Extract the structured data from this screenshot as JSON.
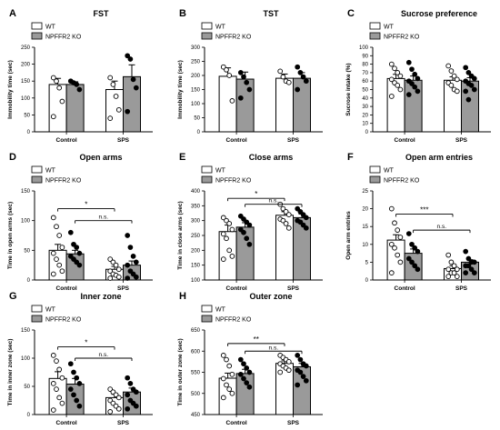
{
  "colors": {
    "wt": "#ffffff",
    "ko": "#9a9a9a",
    "stroke": "#000000"
  },
  "legend": {
    "wt": "WT",
    "ko": "NPFFR2 KO"
  },
  "chart_data": [
    {
      "panel": "A",
      "type": "bar",
      "title": "FST",
      "ylabel": "Immobility time (sec)",
      "ylim": [
        0,
        250
      ],
      "yticks": [
        0,
        50,
        100,
        150,
        200,
        250
      ],
      "categories": [
        "Control",
        "SPS"
      ],
      "series": [
        {
          "name": "WT",
          "values": [
            140,
            125
          ],
          "sem": [
            18,
            25
          ],
          "points": [
            [
              160,
              150,
              130,
              90,
              45
            ],
            [
              160,
              140,
              105,
              65,
              40
            ]
          ]
        },
        {
          "name": "NPFFR2 KO",
          "values": [
            140,
            163
          ],
          "sem": [
            8,
            35
          ],
          "points": [
            [
              150,
              145,
              140,
              125
            ],
            [
              225,
              215,
              155,
              130,
              60
            ]
          ]
        }
      ],
      "annotations": []
    },
    {
      "panel": "B",
      "type": "bar",
      "title": "TST",
      "ylabel": "Immobility time (sec)",
      "ylim": [
        0,
        300
      ],
      "yticks": [
        0,
        50,
        100,
        150,
        200,
        250,
        300
      ],
      "categories": [
        "Control",
        "SPS"
      ],
      "series": [
        {
          "name": "WT",
          "values": [
            197,
            190
          ],
          "sem": [
            30,
            15
          ],
          "points": [
            [
              230,
              220,
              200,
              110
            ],
            [
              215,
              195,
              180,
              175
            ]
          ]
        },
        {
          "name": "NPFFR2 KO",
          "values": [
            187,
            190
          ],
          "sem": [
            25,
            20
          ],
          "points": [
            [
              210,
              195,
              175,
              150,
              120
            ],
            [
              230,
              210,
              195,
              180,
              150
            ]
          ]
        }
      ],
      "annotations": []
    },
    {
      "panel": "C",
      "type": "bar",
      "title": "Sucrose preference",
      "ylabel": "Sucrose intake (%)",
      "ylim": [
        0,
        100
      ],
      "yticks": [
        0,
        10,
        20,
        30,
        40,
        50,
        60,
        70,
        80,
        90,
        100
      ],
      "categories": [
        "Control",
        "SPS"
      ],
      "series": [
        {
          "name": "WT",
          "values": [
            63,
            61
          ],
          "sem": [
            5,
            4
          ],
          "points": [
            [
              80,
              75,
              70,
              66,
              62,
              58,
              55,
              50,
              42
            ],
            [
              78,
              72,
              66,
              62,
              58,
              55,
              50,
              48
            ]
          ]
        },
        {
          "name": "NPFFR2 KO",
          "values": [
            61,
            60
          ],
          "sem": [
            5,
            4
          ],
          "points": [
            [
              82,
              74,
              68,
              63,
              60,
              57,
              53,
              48,
              44
            ],
            [
              76,
              70,
              66,
              63,
              60,
              57,
              55,
              50,
              48,
              38
            ]
          ]
        }
      ],
      "annotations": []
    },
    {
      "panel": "D",
      "type": "bar",
      "title": "Open arms",
      "ylabel": "Time in open arms (sec)",
      "ylim": [
        0,
        150
      ],
      "yticks": [
        0,
        50,
        100,
        150
      ],
      "categories": [
        "Control",
        "SPS"
      ],
      "series": [
        {
          "name": "WT",
          "values": [
            50,
            18
          ],
          "sem": [
            10,
            5
          ],
          "points": [
            [
              105,
              90,
              75,
              55,
              45,
              35,
              25,
              15,
              10
            ],
            [
              35,
              30,
              25,
              18,
              15,
              10,
              8,
              5,
              3
            ]
          ]
        },
        {
          "name": "NPFFR2 KO",
          "values": [
            44,
            25
          ],
          "sem": [
            6,
            7
          ],
          "points": [
            [
              80,
              60,
              55,
              45,
              40,
              35,
              30,
              25
            ],
            [
              75,
              55,
              40,
              30,
              25,
              15,
              10,
              5,
              3
            ]
          ]
        }
      ],
      "annotations": [
        {
          "text": "*",
          "from": [
            0,
            0
          ],
          "to": [
            1,
            0
          ],
          "y": 120
        },
        {
          "text": "n.s.",
          "from": [
            0,
            1
          ],
          "to": [
            1,
            1
          ],
          "y": 100
        }
      ]
    },
    {
      "panel": "E",
      "type": "bar",
      "title": "Close arms",
      "ylabel": "Time in close arms (sec)",
      "ylim": [
        100,
        400
      ],
      "yticks": [
        100,
        150,
        200,
        250,
        300,
        350,
        400
      ],
      "categories": [
        "Control",
        "SPS"
      ],
      "series": [
        {
          "name": "WT",
          "values": [
            263,
            318
          ],
          "sem": [
            22,
            12
          ],
          "points": [
            [
              310,
              300,
              290,
              270,
              255,
              240,
              200,
              180,
              170
            ],
            [
              355,
              340,
              330,
              320,
              305,
              300,
              290,
              275
            ]
          ]
        },
        {
          "name": "NPFFR2 KO",
          "values": [
            278,
            310
          ],
          "sem": [
            15,
            12
          ],
          "points": [
            [
              315,
              305,
              295,
              285,
              270,
              260,
              240,
              220
            ],
            [
              340,
              330,
              320,
              310,
              300,
              295,
              285,
              275
            ]
          ]
        }
      ],
      "annotations": [
        {
          "text": "*",
          "from": [
            0,
            0
          ],
          "to": [
            1,
            0
          ],
          "y": 375
        },
        {
          "text": "n.s.",
          "from": [
            0,
            1
          ],
          "to": [
            1,
            1
          ],
          "y": 355
        }
      ]
    },
    {
      "panel": "F",
      "type": "bar",
      "title": "Open arm entries",
      "ylabel": "Open arm entries",
      "ylim": [
        0,
        25
      ],
      "yticks": [
        0,
        5,
        10,
        15,
        20,
        25
      ],
      "categories": [
        "Control",
        "SPS"
      ],
      "series": [
        {
          "name": "WT",
          "values": [
            11.2,
            3.2
          ],
          "sem": [
            1.5,
            0.8
          ],
          "points": [
            [
              20,
              16,
              14,
              12,
              10,
              9,
              7,
              5,
              2
            ],
            [
              7,
              5,
              4,
              3,
              3,
              2,
              2,
              1,
              1
            ]
          ]
        },
        {
          "name": "NPFFR2 KO",
          "values": [
            7.5,
            5.0
          ],
          "sem": [
            1.2,
            0.7
          ],
          "points": [
            [
              13,
              10,
              9,
              8,
              6,
              5,
              4,
              3
            ],
            [
              8,
              6,
              5,
              5,
              4,
              4,
              3,
              2,
              2
            ]
          ]
        }
      ],
      "annotations": [
        {
          "text": "***",
          "from": [
            0,
            0
          ],
          "to": [
            1,
            0
          ],
          "y": 18.5
        },
        {
          "text": "n.s.",
          "from": [
            0,
            1
          ],
          "to": [
            1,
            1
          ],
          "y": 14
        }
      ]
    },
    {
      "panel": "G",
      "type": "bar",
      "title": "Inner zone",
      "ylabel": "Time in inner zone (sec)",
      "ylim": [
        0,
        150
      ],
      "yticks": [
        0,
        50,
        100,
        150
      ],
      "categories": [
        "Control",
        "SPS"
      ],
      "series": [
        {
          "name": "WT",
          "values": [
            64,
            30
          ],
          "sem": [
            12,
            6
          ],
          "points": [
            [
              105,
              95,
              80,
              65,
              55,
              45,
              30,
              20,
              8
            ],
            [
              45,
              40,
              35,
              30,
              25,
              20,
              15,
              10,
              5
            ]
          ]
        },
        {
          "name": "NPFFR2 KO",
          "values": [
            54,
            40
          ],
          "sem": [
            10,
            7
          ],
          "points": [
            [
              90,
              75,
              65,
              55,
              45,
              35,
              25,
              15
            ],
            [
              65,
              55,
              45,
              40,
              35,
              25,
              20,
              15,
              10
            ]
          ]
        }
      ],
      "annotations": [
        {
          "text": "*",
          "from": [
            0,
            0
          ],
          "to": [
            1,
            0
          ],
          "y": 120
        },
        {
          "text": "n.s.",
          "from": [
            0,
            1
          ],
          "to": [
            1,
            1
          ],
          "y": 100
        }
      ]
    },
    {
      "panel": "H",
      "type": "bar",
      "title": "Outer zone",
      "ylabel": "Time in outer zone (sec)",
      "ylim": [
        450,
        650
      ],
      "yticks": [
        450,
        500,
        550,
        600,
        650
      ],
      "categories": [
        "Control",
        "SPS"
      ],
      "series": [
        {
          "name": "WT",
          "values": [
            536,
            571
          ],
          "sem": [
            12,
            6
          ],
          "points": [
            [
              590,
              580,
              565,
              545,
              535,
              520,
              510,
              500,
              490
            ],
            [
              590,
              585,
              580,
              575,
              570,
              565,
              560,
              555,
              550
            ]
          ]
        },
        {
          "name": "NPFFR2 KO",
          "values": [
            547,
            563
          ],
          "sem": [
            10,
            8
          ],
          "points": [
            [
              580,
              570,
              560,
              550,
              545,
              535,
              525,
              515
            ],
            [
              590,
              580,
              570,
              565,
              555,
              550,
              540,
              530,
              520
            ]
          ]
        }
      ],
      "annotations": [
        {
          "text": "**",
          "from": [
            0,
            0
          ],
          "to": [
            1,
            0
          ],
          "y": 618
        },
        {
          "text": "n.s.",
          "from": [
            0,
            1
          ],
          "to": [
            1,
            1
          ],
          "y": 600
        }
      ]
    }
  ]
}
